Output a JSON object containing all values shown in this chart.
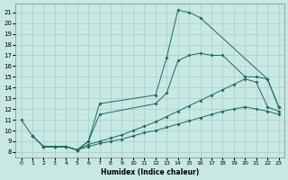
{
  "xlabel": "Humidex (Indice chaleur)",
  "xlim": [
    -0.5,
    23.5
  ],
  "ylim": [
    7.5,
    21.8
  ],
  "xticks": [
    0,
    1,
    2,
    3,
    4,
    5,
    6,
    7,
    8,
    9,
    10,
    11,
    12,
    13,
    14,
    15,
    16,
    17,
    18,
    19,
    20,
    21,
    22,
    23
  ],
  "yticks": [
    8,
    9,
    10,
    11,
    12,
    13,
    14,
    15,
    16,
    17,
    18,
    19,
    20,
    21
  ],
  "bg_color": "#c8e8e4",
  "grid_color": "#a8ceca",
  "line_color": "#1a6b5a",
  "lines": [
    {
      "x": [
        0,
        1,
        2,
        3,
        4,
        5,
        6,
        7,
        12,
        13,
        14,
        15,
        16,
        22,
        23
      ],
      "y": [
        11,
        9.5,
        8.5,
        8.5,
        8.5,
        8.2,
        9.0,
        12.5,
        13.3,
        16.8,
        21.2,
        21.0,
        20.5,
        14.8,
        12.2
      ]
    },
    {
      "x": [
        2,
        3,
        4,
        5,
        6,
        7,
        12,
        13,
        14,
        15,
        16,
        17,
        18,
        20,
        21,
        22,
        23
      ],
      "y": [
        8.5,
        8.5,
        8.5,
        8.2,
        9.0,
        11.5,
        12.5,
        13.5,
        16.5,
        17.0,
        17.2,
        17.0,
        17.0,
        15.0,
        15.0,
        14.8,
        12.2
      ]
    },
    {
      "x": [
        1,
        2,
        3,
        4,
        5,
        6,
        7,
        8,
        9,
        10,
        11,
        12,
        13,
        14,
        15,
        16,
        17,
        18,
        19,
        20,
        21,
        22,
        23
      ],
      "y": [
        9.5,
        8.5,
        8.5,
        8.5,
        8.2,
        8.7,
        9.0,
        9.3,
        9.6,
        10.0,
        10.4,
        10.8,
        11.3,
        11.8,
        12.3,
        12.8,
        13.3,
        13.8,
        14.3,
        14.8,
        14.5,
        12.2,
        11.8
      ]
    },
    {
      "x": [
        1,
        2,
        3,
        4,
        5,
        6,
        7,
        8,
        9,
        10,
        11,
        12,
        13,
        14,
        15,
        16,
        17,
        18,
        19,
        20,
        21,
        22,
        23
      ],
      "y": [
        9.5,
        8.5,
        8.5,
        8.5,
        8.2,
        8.5,
        8.8,
        9.0,
        9.2,
        9.5,
        9.8,
        10.0,
        10.3,
        10.6,
        10.9,
        11.2,
        11.5,
        11.8,
        12.0,
        12.2,
        12.0,
        11.8,
        11.5
      ]
    }
  ]
}
